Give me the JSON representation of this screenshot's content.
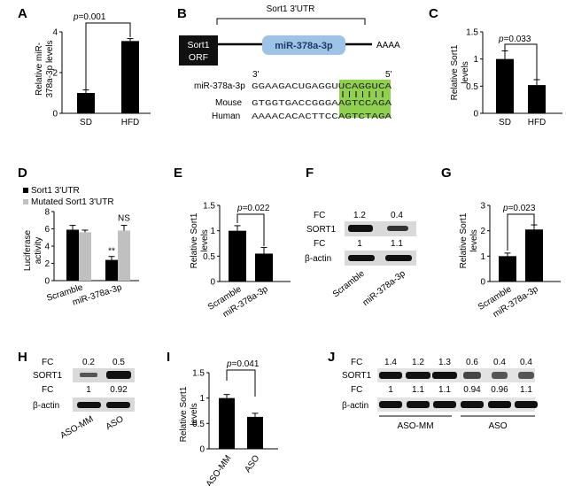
{
  "panels": {
    "A": {
      "label": "A",
      "chart_data": {
        "type": "bar",
        "categories": [
          "SD",
          "HFD"
        ],
        "values": [
          1.0,
          3.55
        ],
        "errors": [
          0.15,
          0.12
        ],
        "ylabel": "Relative miR-378a-3p levels",
        "ylim": [
          0,
          4
        ],
        "yticks": [
          "0",
          "2",
          "4"
        ],
        "pvalue": "p=0.001"
      }
    },
    "B": {
      "label": "B",
      "utr_label": "Sort1 3'UTR",
      "orf_label": [
        "Sort1",
        "ORF"
      ],
      "mirna_box": "miR-378a-3p",
      "polyA": "AAAA",
      "end3": "3'",
      "end5": "5'",
      "rows": [
        {
          "name": "miR-378a-3p",
          "seq": "GGAAGACUGAGGUUCAGGUCA"
        },
        {
          "name": "Mouse",
          "seq": "GTGGTGACCGGGAAGTCCAGA"
        },
        {
          "name": "Human",
          "seq": "AAAACACACTTCCAGTCTAGA"
        }
      ],
      "highlight_color": "#8fd14f"
    },
    "C": {
      "label": "C",
      "chart_data": {
        "type": "bar",
        "categories": [
          "SD",
          "HFD"
        ],
        "values": [
          1.0,
          0.52
        ],
        "errors": [
          0.15,
          0.1
        ],
        "ylabel": "Relative Sort1 levels",
        "ylim": [
          0,
          1.5
        ],
        "yticks": [
          "0",
          "0.5",
          "1",
          "1.5"
        ],
        "pvalue": "p=0.033"
      }
    },
    "D": {
      "label": "D",
      "legend": [
        "Sort1 3'UTR",
        "Mutated Sort1 3'UTR"
      ],
      "chart_data": {
        "type": "bar",
        "categories": [
          "Scramble",
          "miR-378a-3p"
        ],
        "series": [
          {
            "name": "Sort1 3'UTR",
            "values": [
              5.9,
              2.4
            ],
            "errors": [
              0.5,
              0.4
            ],
            "color": "#000000"
          },
          {
            "name": "Mutated Sort1 3'UTR",
            "values": [
              5.6,
              5.8
            ],
            "errors": [
              0.25,
              0.6
            ],
            "color": "#c0c0c0"
          }
        ],
        "ylabel": "Luciferase activity",
        "ylim": [
          0,
          8
        ],
        "yticks": [
          "0",
          "2",
          "4",
          "6",
          "8"
        ],
        "annotations": [
          "**",
          "NS"
        ]
      }
    },
    "E": {
      "label": "E",
      "chart_data": {
        "type": "bar",
        "categories": [
          "Scramble",
          "miR-378a-3p"
        ],
        "values": [
          1.0,
          0.55
        ],
        "errors": [
          0.1,
          0.12
        ],
        "ylabel": "Relative Sort1 levels",
        "ylim": [
          0,
          1.5
        ],
        "yticks": [
          "0",
          "0.5",
          "1",
          "1.5"
        ],
        "pvalue": "p=0.022"
      }
    },
    "F": {
      "label": "F",
      "fc_label": "FC",
      "fc_top": [
        "1.2",
        "0.4"
      ],
      "fc_bottom": [
        "1",
        "1.1"
      ],
      "band_top": "SORT1",
      "band_bottom": "β-actin",
      "lanes": [
        "Scramble",
        "miR-378a-3p"
      ]
    },
    "G": {
      "label": "G",
      "chart_data": {
        "type": "bar",
        "categories": [
          "Scramble",
          "miR-378a-3p"
        ],
        "values": [
          1.0,
          2.05
        ],
        "errors": [
          0.12,
          0.18
        ],
        "ylabel": "Relative Sort1 levels",
        "ylim": [
          0,
          3
        ],
        "yticks": [
          "0",
          "1",
          "2",
          "3"
        ],
        "pvalue": "p=0.023"
      }
    },
    "H": {
      "label": "H",
      "fc_label": "FC",
      "fc_top": [
        "0.2",
        "0.5"
      ],
      "fc_bottom": [
        "1",
        "0.92"
      ],
      "band_top": "SORT1",
      "band_bottom": "β-actin",
      "lanes": [
        "ASO-MM",
        "ASO"
      ]
    },
    "I": {
      "label": "I",
      "chart_data": {
        "type": "bar",
        "categories": [
          "ASO-MM",
          "ASO"
        ],
        "values": [
          1.0,
          0.63
        ],
        "errors": [
          0.07,
          0.07
        ],
        "ylabel": "Relative Sort1 levels",
        "ylim": [
          0,
          1.5
        ],
        "yticks": [
          "0",
          "0.5",
          "1",
          "1.5"
        ],
        "pvalue": "p=0.041"
      }
    },
    "J": {
      "label": "J",
      "fc_label": "FC",
      "fc_top": [
        "1.4",
        "1.2",
        "1.3",
        "0.6",
        "0.4",
        "0.4"
      ],
      "fc_bottom": [
        "1",
        "1.1",
        "1.1",
        "0.94",
        "0.96",
        "1.1"
      ],
      "band_top": "SORT1",
      "band_bottom": "β-actin",
      "groups": [
        "ASO-MM",
        "ASO"
      ]
    }
  }
}
